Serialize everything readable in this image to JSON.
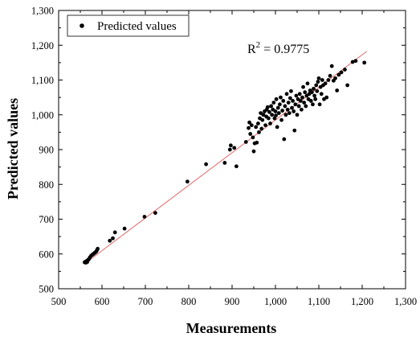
{
  "chart_data": {
    "type": "scatter",
    "xlabel": "Measurements",
    "ylabel": "Predicted values",
    "xlim": [
      500,
      1300
    ],
    "ylim": [
      500,
      1300
    ],
    "xticks": [
      500,
      600,
      700,
      800,
      900,
      1000,
      1100,
      1200,
      1300
    ],
    "yticks": [
      500,
      600,
      700,
      800,
      900,
      1000,
      1100,
      1200,
      1300
    ],
    "xtick_labels": [
      "500",
      "600",
      "700",
      "800",
      "900",
      "1,000",
      "1,100",
      "1,200",
      "1,300"
    ],
    "ytick_labels": [
      "500",
      "600",
      "700",
      "800",
      "900",
      "1,000",
      "1,100",
      "1,200",
      "1,300"
    ],
    "grid": false,
    "legend": {
      "position": "top-left",
      "entries": [
        "Predicted values"
      ]
    },
    "annotation": {
      "base": "R",
      "sup": "2",
      "rest": " = 0.9775"
    },
    "colors": {
      "points": "#000000",
      "fit_line": "#e06666",
      "frame": "#000000"
    },
    "fit_line": {
      "x": [
        560,
        1210
      ],
      "y": [
        572,
        1182
      ]
    },
    "series": [
      {
        "name": "Predicted values",
        "points": [
          [
            560,
            576
          ],
          [
            562,
            578
          ],
          [
            563,
            575
          ],
          [
            565,
            580
          ],
          [
            566,
            577
          ],
          [
            568,
            583
          ],
          [
            570,
            585
          ],
          [
            572,
            590
          ],
          [
            575,
            595
          ],
          [
            578,
            598
          ],
          [
            580,
            600
          ],
          [
            583,
            603
          ],
          [
            586,
            606
          ],
          [
            588,
            610
          ],
          [
            590,
            615
          ],
          [
            618,
            638
          ],
          [
            625,
            645
          ],
          [
            630,
            662
          ],
          [
            652,
            673
          ],
          [
            698,
            707
          ],
          [
            723,
            718
          ],
          [
            797,
            808
          ],
          [
            840,
            858
          ],
          [
            883,
            862
          ],
          [
            895,
            900
          ],
          [
            897,
            912
          ],
          [
            905,
            905
          ],
          [
            910,
            852
          ],
          [
            932,
            922
          ],
          [
            938,
            962
          ],
          [
            940,
            978
          ],
          [
            942,
            945
          ],
          [
            945,
            970
          ],
          [
            948,
            935
          ],
          [
            950,
            895
          ],
          [
            952,
            918
          ],
          [
            955,
            965
          ],
          [
            957,
            920
          ],
          [
            960,
            975
          ],
          [
            962,
            950
          ],
          [
            964,
            990
          ],
          [
            966,
            1005
          ],
          [
            968,
            960
          ],
          [
            970,
            985
          ],
          [
            972,
            1000
          ],
          [
            975,
            1010
          ],
          [
            977,
            970
          ],
          [
            979,
            995
          ],
          [
            980,
            1015
          ],
          [
            982,
            1022
          ],
          [
            984,
            990
          ],
          [
            986,
            1008
          ],
          [
            988,
            975
          ],
          [
            990,
            1025
          ],
          [
            992,
            1000
          ],
          [
            994,
            1015
          ],
          [
            996,
            1035
          ],
          [
            998,
            990
          ],
          [
            1000,
            1010
          ],
          [
            1001,
            998
          ],
          [
            1002,
            1045
          ],
          [
            1004,
            965
          ],
          [
            1006,
            1020
          ],
          [
            1008,
            1005
          ],
          [
            1010,
            1030
          ],
          [
            1012,
            1050
          ],
          [
            1014,
            985
          ],
          [
            1016,
            1012
          ],
          [
            1018,
            1040
          ],
          [
            1020,
            930
          ],
          [
            1022,
            1025
          ],
          [
            1024,
            1000
          ],
          [
            1026,
            1060
          ],
          [
            1028,
            1015
          ],
          [
            1030,
            1035
          ],
          [
            1032,
            1005
          ],
          [
            1034,
            1048
          ],
          [
            1036,
            1068
          ],
          [
            1038,
            1020
          ],
          [
            1040,
            1040
          ],
          [
            1042,
            1010
          ],
          [
            1044,
            955
          ],
          [
            1046,
            1030
          ],
          [
            1048,
            1055
          ],
          [
            1050,
            1000
          ],
          [
            1052,
            1045
          ],
          [
            1054,
            1025
          ],
          [
            1056,
            1060
          ],
          [
            1058,
            1040
          ],
          [
            1060,
            1015
          ],
          [
            1062,
            1050
          ],
          [
            1064,
            1080
          ],
          [
            1066,
            1035
          ],
          [
            1068,
            1065
          ],
          [
            1070,
            1025
          ],
          [
            1072,
            1055
          ],
          [
            1074,
            1090
          ],
          [
            1076,
            1045
          ],
          [
            1078,
            1060
          ],
          [
            1080,
            1070
          ],
          [
            1082,
            1040
          ],
          [
            1084,
            1065
          ],
          [
            1086,
            1030
          ],
          [
            1088,
            1075
          ],
          [
            1090,
            1055
          ],
          [
            1092,
            1045
          ],
          [
            1094,
            1085
          ],
          [
            1096,
            1068
          ],
          [
            1098,
            1095
          ],
          [
            1100,
            1105
          ],
          [
            1102,
            1030
          ],
          [
            1104,
            1080
          ],
          [
            1106,
            1060
          ],
          [
            1108,
            1100
          ],
          [
            1110,
            1085
          ],
          [
            1112,
            1045
          ],
          [
            1115,
            1090
          ],
          [
            1118,
            1050
          ],
          [
            1122,
            1100
          ],
          [
            1126,
            1112
          ],
          [
            1130,
            1140
          ],
          [
            1134,
            1098
          ],
          [
            1138,
            1105
          ],
          [
            1142,
            1070
          ],
          [
            1146,
            1115
          ],
          [
            1152,
            1122
          ],
          [
            1160,
            1130
          ],
          [
            1166,
            1085
          ],
          [
            1178,
            1152
          ],
          [
            1185,
            1155
          ],
          [
            1205,
            1150
          ]
        ]
      }
    ]
  }
}
